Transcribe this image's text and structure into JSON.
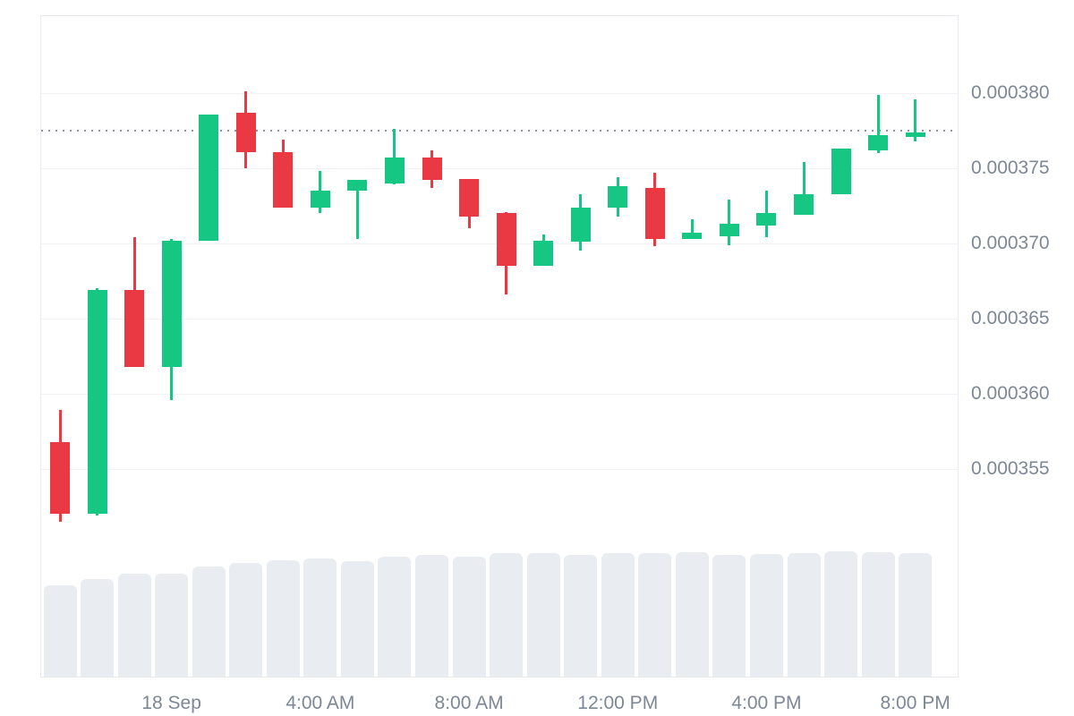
{
  "chart_data": {
    "type": "candlestick",
    "title": "",
    "grid": "horizontal-only",
    "colors": {
      "up": "#16c784",
      "down": "#ea3943",
      "volume": "#e9edf2",
      "gridline": "#f0f2f5",
      "border": "#e7eaee",
      "label": "#7d8796",
      "price_line": "#8d949f",
      "background": "#ffffff"
    },
    "y_axis": {
      "side": "right",
      "tick_labels": [
        "0.000380",
        "0.000375",
        "0.000370",
        "0.000365",
        "0.000360",
        "0.000355"
      ],
      "tick_values": [
        0.00038,
        0.000375,
        0.00037,
        0.000365,
        0.00036,
        0.000355
      ],
      "ylim": [
        0.000352,
        0.000385
      ]
    },
    "x_axis": {
      "tick_labels": [
        "18 Sep",
        "4:00 AM",
        "8:00 AM",
        "12:00 PM",
        "4:00 PM",
        "8:00 PM"
      ],
      "tick_candle_indices": [
        3,
        7,
        11,
        15,
        19,
        23
      ]
    },
    "current_price_line": {
      "value": 0.0003775,
      "style": "dotted"
    },
    "candles": [
      {
        "open": 0.0003568,
        "high": 0.0003589,
        "low": 0.0003515,
        "close": 0.000352,
        "volume": 0.73
      },
      {
        "open": 0.000352,
        "high": 0.000367,
        "low": 0.0003519,
        "close": 0.0003669,
        "volume": 0.78
      },
      {
        "open": 0.0003669,
        "high": 0.0003704,
        "low": 0.0003618,
        "close": 0.0003618,
        "volume": 0.82
      },
      {
        "open": 0.0003618,
        "high": 0.0003703,
        "low": 0.0003596,
        "close": 0.0003702,
        "volume": 0.82
      },
      {
        "open": 0.0003702,
        "high": 0.0003786,
        "low": 0.0003702,
        "close": 0.0003786,
        "volume": 0.88
      },
      {
        "open": 0.0003787,
        "high": 0.0003801,
        "low": 0.000375,
        "close": 0.0003761,
        "volume": 0.91
      },
      {
        "open": 0.0003761,
        "high": 0.0003769,
        "low": 0.0003724,
        "close": 0.0003724,
        "volume": 0.93
      },
      {
        "open": 0.0003724,
        "high": 0.0003748,
        "low": 0.000372,
        "close": 0.0003735,
        "volume": 0.94
      },
      {
        "open": 0.0003735,
        "high": 0.0003742,
        "low": 0.0003703,
        "close": 0.0003742,
        "volume": 0.92
      },
      {
        "open": 0.000374,
        "high": 0.0003776,
        "low": 0.0003739,
        "close": 0.0003757,
        "volume": 0.96
      },
      {
        "open": 0.0003757,
        "high": 0.0003762,
        "low": 0.0003737,
        "close": 0.0003742,
        "volume": 0.97
      },
      {
        "open": 0.0003743,
        "high": 0.0003743,
        "low": 0.000371,
        "close": 0.0003718,
        "volume": 0.96
      },
      {
        "open": 0.000372,
        "high": 0.0003721,
        "low": 0.0003666,
        "close": 0.0003685,
        "volume": 0.985
      },
      {
        "open": 0.0003685,
        "high": 0.0003706,
        "low": 0.0003685,
        "close": 0.0003702,
        "volume": 0.985
      },
      {
        "open": 0.0003701,
        "high": 0.0003733,
        "low": 0.0003695,
        "close": 0.0003724,
        "volume": 0.97
      },
      {
        "open": 0.0003724,
        "high": 0.0003744,
        "low": 0.0003718,
        "close": 0.0003738,
        "volume": 0.985
      },
      {
        "open": 0.0003737,
        "high": 0.0003747,
        "low": 0.0003698,
        "close": 0.0003703,
        "volume": 0.985
      },
      {
        "open": 0.0003703,
        "high": 0.0003716,
        "low": 0.0003703,
        "close": 0.0003707,
        "volume": 0.99
      },
      {
        "open": 0.0003705,
        "high": 0.0003729,
        "low": 0.0003699,
        "close": 0.0003713,
        "volume": 0.97
      },
      {
        "open": 0.0003712,
        "high": 0.0003735,
        "low": 0.0003704,
        "close": 0.000372,
        "volume": 0.98
      },
      {
        "open": 0.0003719,
        "high": 0.0003754,
        "low": 0.0003719,
        "close": 0.0003733,
        "volume": 0.985
      },
      {
        "open": 0.0003733,
        "high": 0.0003763,
        "low": 0.0003733,
        "close": 0.0003763,
        "volume": 1.0
      },
      {
        "open": 0.0003762,
        "high": 0.0003799,
        "low": 0.000376,
        "close": 0.0003772,
        "volume": 0.99
      },
      {
        "open": 0.0003771,
        "high": 0.0003796,
        "low": 0.0003768,
        "close": 0.0003774,
        "volume": 0.985
      }
    ]
  }
}
